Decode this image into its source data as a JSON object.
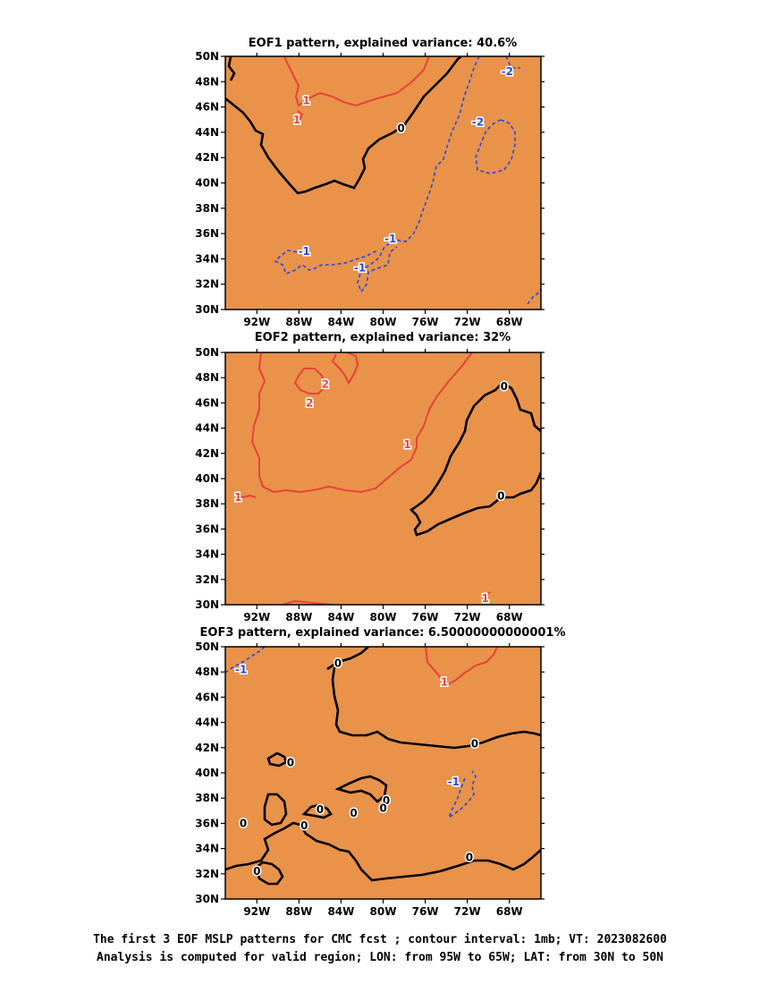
{
  "colors": {
    "coast": "#e8924a",
    "positive": "#e8433a",
    "negative": "#2a48e0",
    "zero": "#000000",
    "grid": "#8a8a8a"
  },
  "caption": {
    "line1": "The first 3 EOF MSLP patterns for CMC fcst ; contour interval: 1mb; VT: 2023082600",
    "line2": "Analysis is computed for valid region; LON: from 95W to 65W; LAT: from 30N to 50N"
  },
  "chart_data": [
    {
      "type": "contour_map",
      "title": "EOF1 pattern, explained variance: 40.6%",
      "x_ticks": [
        "92W",
        "88W",
        "84W",
        "80W",
        "76W",
        "72W",
        "68W"
      ],
      "y_ticks": [
        "30N",
        "32N",
        "34N",
        "36N",
        "38N",
        "40N",
        "42N",
        "44N",
        "46N",
        "48N",
        "50N"
      ],
      "xlim": [
        -95,
        -65
      ],
      "ylim": [
        30,
        50
      ],
      "grid": true,
      "contour_labels": [
        {
          "text": "1",
          "lon": -87.3,
          "lat": 46.5,
          "sign": "positive"
        },
        {
          "text": "1",
          "lon": -88.2,
          "lat": 45.0,
          "sign": "positive"
        },
        {
          "text": "0",
          "lon": -78.3,
          "lat": 44.3,
          "sign": "zero"
        },
        {
          "text": "-2",
          "lon": -68.2,
          "lat": 48.8,
          "sign": "negative"
        },
        {
          "text": "-2",
          "lon": -71.0,
          "lat": 44.8,
          "sign": "negative"
        },
        {
          "text": "-1",
          "lon": -79.3,
          "lat": 35.6,
          "sign": "negative"
        },
        {
          "text": "-1",
          "lon": -87.5,
          "lat": 34.6,
          "sign": "negative"
        },
        {
          "text": "-1",
          "lon": -82.2,
          "lat": 33.3,
          "sign": "negative"
        }
      ]
    },
    {
      "type": "contour_map",
      "title": "EOF2 pattern, explained variance: 32%",
      "x_ticks": [
        "92W",
        "88W",
        "84W",
        "80W",
        "76W",
        "72W",
        "68W"
      ],
      "y_ticks": [
        "30N",
        "32N",
        "34N",
        "36N",
        "38N",
        "40N",
        "42N",
        "44N",
        "46N",
        "48N",
        "50N"
      ],
      "xlim": [
        -95,
        -65
      ],
      "ylim": [
        30,
        50
      ],
      "grid": true,
      "contour_labels": [
        {
          "text": "2",
          "lon": -85.5,
          "lat": 47.5,
          "sign": "positive"
        },
        {
          "text": "2",
          "lon": -87.0,
          "lat": 46.0,
          "sign": "positive"
        },
        {
          "text": "1",
          "lon": -77.7,
          "lat": 42.7,
          "sign": "positive"
        },
        {
          "text": "1",
          "lon": -93.8,
          "lat": 38.5,
          "sign": "positive"
        },
        {
          "text": "1",
          "lon": -70.3,
          "lat": 30.5,
          "sign": "positive"
        },
        {
          "text": "0",
          "lon": -68.5,
          "lat": 47.3,
          "sign": "zero"
        },
        {
          "text": "0",
          "lon": -68.8,
          "lat": 38.6,
          "sign": "zero"
        }
      ]
    },
    {
      "type": "contour_map",
      "title": "EOF3 pattern, explained variance: 6.50000000000001%",
      "x_ticks": [
        "92W",
        "88W",
        "84W",
        "80W",
        "76W",
        "72W",
        "68W"
      ],
      "y_ticks": [
        "30N",
        "32N",
        "34N",
        "36N",
        "38N",
        "40N",
        "42N",
        "44N",
        "46N",
        "48N",
        "50N"
      ],
      "xlim": [
        -95,
        -65
      ],
      "ylim": [
        30,
        50
      ],
      "grid": true,
      "contour_labels": [
        {
          "text": "-1",
          "lon": -93.5,
          "lat": 48.2,
          "sign": "negative"
        },
        {
          "text": "1",
          "lon": -74.2,
          "lat": 47.2,
          "sign": "positive"
        },
        {
          "text": "-1",
          "lon": -73.3,
          "lat": 39.3,
          "sign": "negative"
        },
        {
          "text": "0",
          "lon": -84.3,
          "lat": 48.7,
          "sign": "zero"
        },
        {
          "text": "0",
          "lon": -71.3,
          "lat": 42.3,
          "sign": "zero"
        },
        {
          "text": "0",
          "lon": -88.8,
          "lat": 40.8,
          "sign": "zero"
        },
        {
          "text": "0",
          "lon": -79.7,
          "lat": 37.8,
          "sign": "zero"
        },
        {
          "text": "0",
          "lon": -80.0,
          "lat": 37.2,
          "sign": "zero"
        },
        {
          "text": "0",
          "lon": -82.8,
          "lat": 36.8,
          "sign": "zero"
        },
        {
          "text": "0",
          "lon": -86.0,
          "lat": 37.1,
          "sign": "zero"
        },
        {
          "text": "0",
          "lon": -87.5,
          "lat": 35.8,
          "sign": "zero"
        },
        {
          "text": "0",
          "lon": -93.3,
          "lat": 36.0,
          "sign": "zero"
        },
        {
          "text": "0",
          "lon": -92.0,
          "lat": 32.2,
          "sign": "zero"
        },
        {
          "text": "0",
          "lon": -71.8,
          "lat": 33.3,
          "sign": "zero"
        }
      ]
    }
  ]
}
